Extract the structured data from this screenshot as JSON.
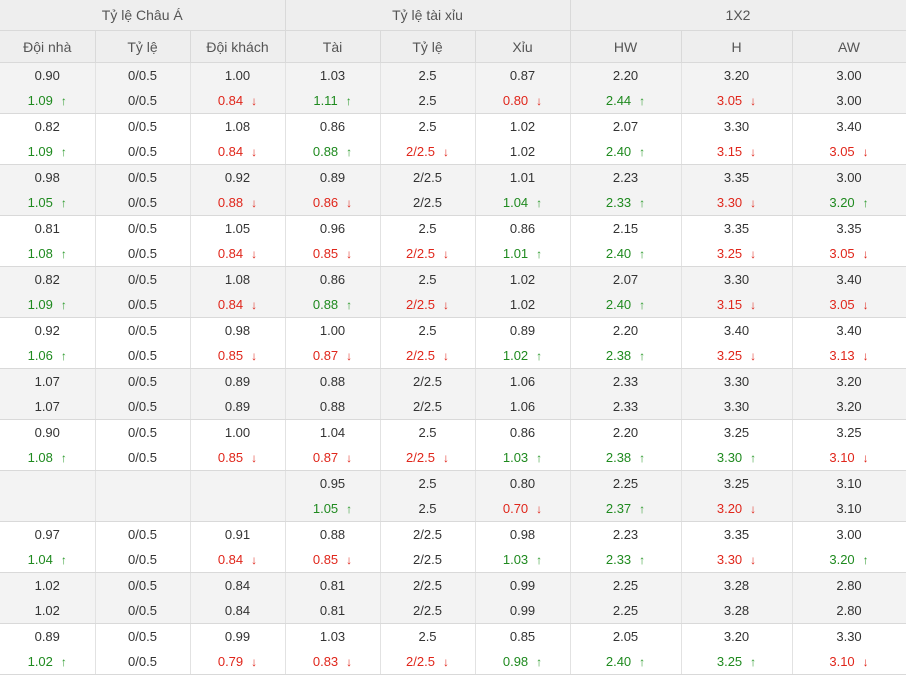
{
  "groups": [
    {
      "label": "Tỷ lệ Châu Á",
      "span": 3
    },
    {
      "label": "Tỷ lệ tài xỉu",
      "span": 3
    },
    {
      "label": "1X2",
      "span": 3
    }
  ],
  "columns": [
    "Đội nhà",
    "Tỷ lệ",
    "Đội khách",
    "Tài",
    "Tỷ lệ",
    "Xỉu",
    "HW",
    "H",
    "AW"
  ],
  "colors": {
    "up": "#1f8a1f",
    "down": "#e0261b",
    "header_bg": "#eeeeee",
    "alt_row": "#f3f3f3"
  },
  "icons": {
    "up": "arrow-up-icon",
    "down": "arrow-down-icon"
  },
  "rows": [
    {
      "cells": [
        {
          "top": "0.90",
          "bottom": "1.09",
          "dir": "up"
        },
        {
          "top": "0/0.5",
          "bottom": "0/0.5",
          "dir": ""
        },
        {
          "top": "1.00",
          "bottom": "0.84",
          "dir": "down"
        },
        {
          "top": "1.03",
          "bottom": "1.11",
          "dir": "up"
        },
        {
          "top": "2.5",
          "bottom": "2.5",
          "dir": ""
        },
        {
          "top": "0.87",
          "bottom": "0.80",
          "dir": "down"
        },
        {
          "top": "2.20",
          "bottom": "2.44",
          "dir": "up"
        },
        {
          "top": "3.20",
          "bottom": "3.05",
          "dir": "down"
        },
        {
          "top": "3.00",
          "bottom": "3.00",
          "dir": ""
        }
      ]
    },
    {
      "cells": [
        {
          "top": "0.82",
          "bottom": "1.09",
          "dir": "up"
        },
        {
          "top": "0/0.5",
          "bottom": "0/0.5",
          "dir": ""
        },
        {
          "top": "1.08",
          "bottom": "0.84",
          "dir": "down"
        },
        {
          "top": "0.86",
          "bottom": "0.88",
          "dir": "up"
        },
        {
          "top": "2.5",
          "bottom": "2/2.5",
          "dir": "down"
        },
        {
          "top": "1.02",
          "bottom": "1.02",
          "dir": ""
        },
        {
          "top": "2.07",
          "bottom": "2.40",
          "dir": "up"
        },
        {
          "top": "3.30",
          "bottom": "3.15",
          "dir": "down"
        },
        {
          "top": "3.40",
          "bottom": "3.05",
          "dir": "down"
        }
      ]
    },
    {
      "cells": [
        {
          "top": "0.98",
          "bottom": "1.05",
          "dir": "up"
        },
        {
          "top": "0/0.5",
          "bottom": "0/0.5",
          "dir": ""
        },
        {
          "top": "0.92",
          "bottom": "0.88",
          "dir": "down"
        },
        {
          "top": "0.89",
          "bottom": "0.86",
          "dir": "down"
        },
        {
          "top": "2/2.5",
          "bottom": "2/2.5",
          "dir": ""
        },
        {
          "top": "1.01",
          "bottom": "1.04",
          "dir": "up"
        },
        {
          "top": "2.23",
          "bottom": "2.33",
          "dir": "up"
        },
        {
          "top": "3.35",
          "bottom": "3.30",
          "dir": "down"
        },
        {
          "top": "3.00",
          "bottom": "3.20",
          "dir": "up"
        }
      ]
    },
    {
      "cells": [
        {
          "top": "0.81",
          "bottom": "1.08",
          "dir": "up"
        },
        {
          "top": "0/0.5",
          "bottom": "0/0.5",
          "dir": ""
        },
        {
          "top": "1.05",
          "bottom": "0.84",
          "dir": "down"
        },
        {
          "top": "0.96",
          "bottom": "0.85",
          "dir": "down"
        },
        {
          "top": "2.5",
          "bottom": "2/2.5",
          "dir": "down"
        },
        {
          "top": "0.86",
          "bottom": "1.01",
          "dir": "up"
        },
        {
          "top": "2.15",
          "bottom": "2.40",
          "dir": "up"
        },
        {
          "top": "3.35",
          "bottom": "3.25",
          "dir": "down"
        },
        {
          "top": "3.35",
          "bottom": "3.05",
          "dir": "down"
        }
      ]
    },
    {
      "cells": [
        {
          "top": "0.82",
          "bottom": "1.09",
          "dir": "up"
        },
        {
          "top": "0/0.5",
          "bottom": "0/0.5",
          "dir": ""
        },
        {
          "top": "1.08",
          "bottom": "0.84",
          "dir": "down"
        },
        {
          "top": "0.86",
          "bottom": "0.88",
          "dir": "up"
        },
        {
          "top": "2.5",
          "bottom": "2/2.5",
          "dir": "down"
        },
        {
          "top": "1.02",
          "bottom": "1.02",
          "dir": ""
        },
        {
          "top": "2.07",
          "bottom": "2.40",
          "dir": "up"
        },
        {
          "top": "3.30",
          "bottom": "3.15",
          "dir": "down"
        },
        {
          "top": "3.40",
          "bottom": "3.05",
          "dir": "down"
        }
      ]
    },
    {
      "cells": [
        {
          "top": "0.92",
          "bottom": "1.06",
          "dir": "up"
        },
        {
          "top": "0/0.5",
          "bottom": "0/0.5",
          "dir": ""
        },
        {
          "top": "0.98",
          "bottom": "0.85",
          "dir": "down"
        },
        {
          "top": "1.00",
          "bottom": "0.87",
          "dir": "down"
        },
        {
          "top": "2.5",
          "bottom": "2/2.5",
          "dir": "down"
        },
        {
          "top": "0.89",
          "bottom": "1.02",
          "dir": "up"
        },
        {
          "top": "2.20",
          "bottom": "2.38",
          "dir": "up"
        },
        {
          "top": "3.40",
          "bottom": "3.25",
          "dir": "down"
        },
        {
          "top": "3.40",
          "bottom": "3.13",
          "dir": "down"
        }
      ]
    },
    {
      "cells": [
        {
          "top": "1.07",
          "bottom": "1.07",
          "dir": ""
        },
        {
          "top": "0/0.5",
          "bottom": "0/0.5",
          "dir": ""
        },
        {
          "top": "0.89",
          "bottom": "0.89",
          "dir": ""
        },
        {
          "top": "0.88",
          "bottom": "0.88",
          "dir": ""
        },
        {
          "top": "2/2.5",
          "bottom": "2/2.5",
          "dir": ""
        },
        {
          "top": "1.06",
          "bottom": "1.06",
          "dir": ""
        },
        {
          "top": "2.33",
          "bottom": "2.33",
          "dir": ""
        },
        {
          "top": "3.30",
          "bottom": "3.30",
          "dir": ""
        },
        {
          "top": "3.20",
          "bottom": "3.20",
          "dir": ""
        }
      ]
    },
    {
      "cells": [
        {
          "top": "0.90",
          "bottom": "1.08",
          "dir": "up"
        },
        {
          "top": "0/0.5",
          "bottom": "0/0.5",
          "dir": ""
        },
        {
          "top": "1.00",
          "bottom": "0.85",
          "dir": "down"
        },
        {
          "top": "1.04",
          "bottom": "0.87",
          "dir": "down"
        },
        {
          "top": "2.5",
          "bottom": "2/2.5",
          "dir": "down"
        },
        {
          "top": "0.86",
          "bottom": "1.03",
          "dir": "up"
        },
        {
          "top": "2.20",
          "bottom": "2.38",
          "dir": "up"
        },
        {
          "top": "3.25",
          "bottom": "3.30",
          "dir": "up"
        },
        {
          "top": "3.25",
          "bottom": "3.10",
          "dir": "down"
        }
      ]
    },
    {
      "cells": [
        {
          "top": "",
          "bottom": "",
          "dir": ""
        },
        {
          "top": "",
          "bottom": "",
          "dir": ""
        },
        {
          "top": "",
          "bottom": "",
          "dir": ""
        },
        {
          "top": "0.95",
          "bottom": "1.05",
          "dir": "up"
        },
        {
          "top": "2.5",
          "bottom": "2.5",
          "dir": ""
        },
        {
          "top": "0.80",
          "bottom": "0.70",
          "dir": "down"
        },
        {
          "top": "2.25",
          "bottom": "2.37",
          "dir": "up"
        },
        {
          "top": "3.25",
          "bottom": "3.20",
          "dir": "down"
        },
        {
          "top": "3.10",
          "bottom": "3.10",
          "dir": ""
        }
      ]
    },
    {
      "cells": [
        {
          "top": "0.97",
          "bottom": "1.04",
          "dir": "up"
        },
        {
          "top": "0/0.5",
          "bottom": "0/0.5",
          "dir": ""
        },
        {
          "top": "0.91",
          "bottom": "0.84",
          "dir": "down"
        },
        {
          "top": "0.88",
          "bottom": "0.85",
          "dir": "down"
        },
        {
          "top": "2/2.5",
          "bottom": "2/2.5",
          "dir": ""
        },
        {
          "top": "0.98",
          "bottom": "1.03",
          "dir": "up"
        },
        {
          "top": "2.23",
          "bottom": "2.33",
          "dir": "up"
        },
        {
          "top": "3.35",
          "bottom": "3.30",
          "dir": "down"
        },
        {
          "top": "3.00",
          "bottom": "3.20",
          "dir": "up"
        }
      ]
    },
    {
      "cells": [
        {
          "top": "1.02",
          "bottom": "1.02",
          "dir": ""
        },
        {
          "top": "0/0.5",
          "bottom": "0/0.5",
          "dir": ""
        },
        {
          "top": "0.84",
          "bottom": "0.84",
          "dir": ""
        },
        {
          "top": "0.81",
          "bottom": "0.81",
          "dir": ""
        },
        {
          "top": "2/2.5",
          "bottom": "2/2.5",
          "dir": ""
        },
        {
          "top": "0.99",
          "bottom": "0.99",
          "dir": ""
        },
        {
          "top": "2.25",
          "bottom": "2.25",
          "dir": ""
        },
        {
          "top": "3.28",
          "bottom": "3.28",
          "dir": ""
        },
        {
          "top": "2.80",
          "bottom": "2.80",
          "dir": ""
        }
      ]
    },
    {
      "cells": [
        {
          "top": "0.89",
          "bottom": "1.02",
          "dir": "up"
        },
        {
          "top": "0/0.5",
          "bottom": "0/0.5",
          "dir": ""
        },
        {
          "top": "0.99",
          "bottom": "0.79",
          "dir": "down"
        },
        {
          "top": "1.03",
          "bottom": "0.83",
          "dir": "down"
        },
        {
          "top": "2.5",
          "bottom": "2/2.5",
          "dir": "down"
        },
        {
          "top": "0.85",
          "bottom": "0.98",
          "dir": "up"
        },
        {
          "top": "2.05",
          "bottom": "2.40",
          "dir": "up"
        },
        {
          "top": "3.20",
          "bottom": "3.25",
          "dir": "up"
        },
        {
          "top": "3.30",
          "bottom": "3.10",
          "dir": "down"
        }
      ]
    }
  ]
}
